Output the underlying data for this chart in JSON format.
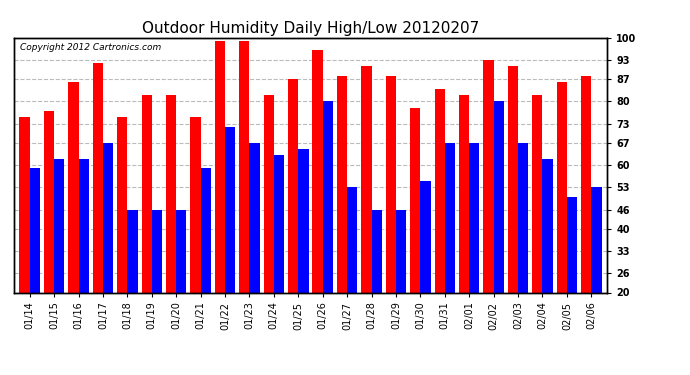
{
  "title": "Outdoor Humidity Daily High/Low 20120207",
  "copyright": "Copyright 2012 Cartronics.com",
  "dates": [
    "01/14",
    "01/15",
    "01/16",
    "01/17",
    "01/18",
    "01/19",
    "01/20",
    "01/21",
    "01/22",
    "01/23",
    "01/24",
    "01/25",
    "01/26",
    "01/27",
    "01/28",
    "01/29",
    "01/30",
    "01/31",
    "02/01",
    "02/02",
    "02/03",
    "02/04",
    "02/05",
    "02/06"
  ],
  "high": [
    75,
    77,
    86,
    92,
    75,
    82,
    82,
    75,
    99,
    99,
    82,
    87,
    96,
    88,
    91,
    88,
    78,
    84,
    82,
    93,
    91,
    82,
    86,
    88
  ],
  "low": [
    59,
    62,
    62,
    67,
    46,
    46,
    46,
    59,
    72,
    67,
    63,
    65,
    80,
    53,
    46,
    46,
    55,
    67,
    67,
    80,
    67,
    62,
    50,
    53
  ],
  "high_color": "#ff0000",
  "low_color": "#0000ff",
  "bg_color": "#ffffff",
  "yticks": [
    20,
    26,
    33,
    40,
    46,
    53,
    60,
    67,
    73,
    80,
    87,
    93,
    100
  ],
  "ymin": 20,
  "ymax": 100,
  "bar_width": 0.42,
  "title_fontsize": 11,
  "tick_fontsize": 7,
  "copyright_fontsize": 6.5
}
